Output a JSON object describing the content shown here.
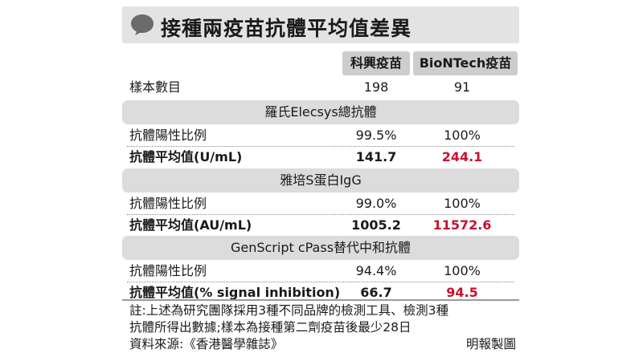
{
  "title": "接種兩疫苗抗體平均值差異",
  "columns": [
    "科興疫苗",
    "BioNTech疫苗"
  ],
  "sample_row": {
    "label": "樣本數目",
    "a": "198",
    "b": "91"
  },
  "sections": [
    {
      "name": "羅氏Elecsys總抗體",
      "rows": [
        {
          "label": "抗體陽性比例",
          "a": "99.5%",
          "b": "100%"
        },
        {
          "label": "抗體平均值(U/mL)",
          "a": "141.7",
          "b": "244.1"
        }
      ]
    },
    {
      "name": "雅培S蛋白IgG",
      "rows": [
        {
          "label": "抗體陽性比例",
          "a": "99.0%",
          "b": "100%"
        },
        {
          "label": "抗體平均值(AU/mL)",
          "a": "1005.2",
          "b": "11572.6"
        }
      ]
    },
    {
      "name": "GenScript cPass替代中和抗體",
      "rows": [
        {
          "label": "抗體陽性比例",
          "a": "94.4%",
          "b": "100%"
        },
        {
          "label": "抗體平均值(% signal inhibition)",
          "a": "66.7",
          "b": "94.5"
        }
      ]
    }
  ],
  "note_line1": "註:上述為研究團隊採用3種不同品牌的檢測工具、檢測3種",
  "note_line2": "抗體所得出數據;樣本為接種第二劑疫苗後最少28日",
  "source": "資料來源:《香港醫學雜誌》",
  "credit": "明報製圖",
  "colors": {
    "highlight": "#c8102e",
    "header_bg": "#cdcdcd",
    "section_bg": "#dcdcdc"
  }
}
